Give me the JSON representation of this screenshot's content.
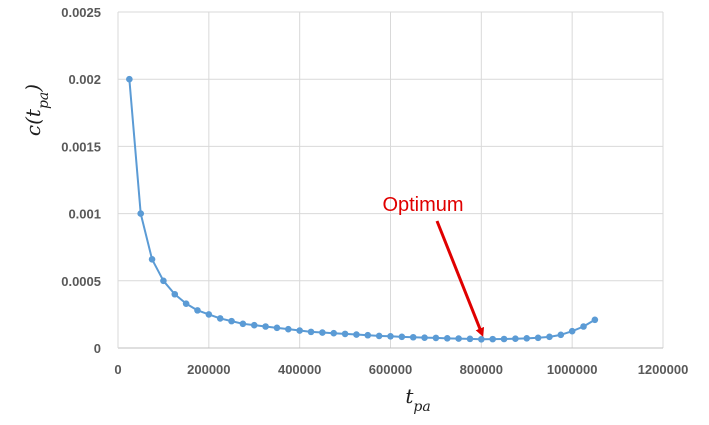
{
  "chart_data": {
    "type": "scatter",
    "title": "",
    "xlabel": "t_pa",
    "ylabel": "c(t_pa)",
    "xlim": [
      0,
      1200000
    ],
    "ylim": [
      0,
      0.0025
    ],
    "x_ticks": [
      "0",
      "200000",
      "400000",
      "600000",
      "800000",
      "1000000",
      "1200000"
    ],
    "y_ticks": [
      "0",
      "0.0005",
      "0.001",
      "0.0015",
      "0.002",
      "0.0025"
    ],
    "grid": true,
    "series_color": "#5b9bd5",
    "series": [
      {
        "x": [
          25000,
          50000,
          75000,
          100000,
          125000,
          150000,
          175000,
          200000,
          225000,
          250000,
          275000,
          300000,
          325000,
          350000,
          375000,
          400000,
          425000,
          450000,
          475000,
          500000,
          525000,
          550000,
          575000,
          600000,
          625000,
          650000,
          675000,
          700000,
          725000,
          750000,
          775000,
          800000,
          825000,
          850000,
          875000,
          900000,
          925000,
          950000,
          975000,
          1000000,
          1025000,
          1050000
        ],
        "y": [
          0.002,
          0.001,
          0.00066,
          0.0005,
          0.0004,
          0.00033,
          0.00028,
          0.00025,
          0.00022,
          0.0002,
          0.00018,
          0.00017,
          0.00016,
          0.00015,
          0.00014,
          0.00013,
          0.00012,
          0.000115,
          0.00011,
          0.000105,
          0.0001,
          9.5e-05,
          9e-05,
          8.7e-05,
          8.3e-05,
          8e-05,
          7.7e-05,
          7.5e-05,
          7.2e-05,
          7e-05,
          6.8e-05,
          6.5e-05,
          6.6e-05,
          6.7e-05,
          6.9e-05,
          7.2e-05,
          7.6e-05,
          8.3e-05,
          9.8e-05,
          0.000125,
          0.00016,
          0.00021
        ]
      }
    ],
    "annotation": {
      "text": "Optimum",
      "color": "#e00000",
      "points_to": [
        800000,
        6.5e-05
      ]
    }
  }
}
